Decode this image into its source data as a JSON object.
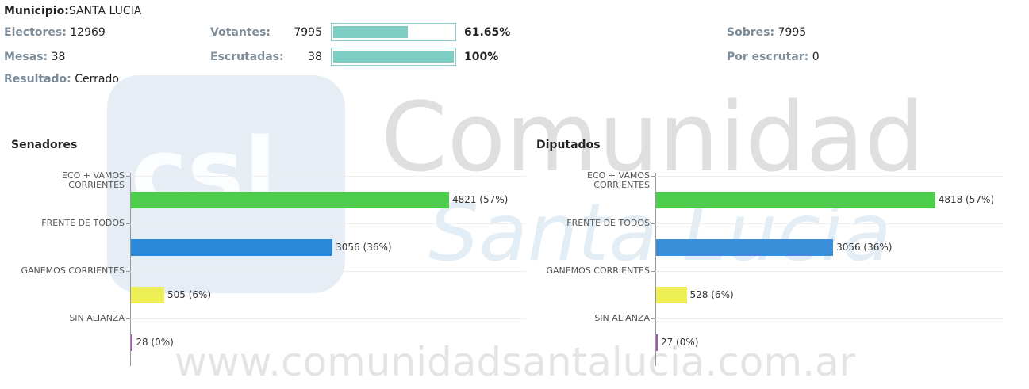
{
  "header": {
    "municipio_label": "Municipio:",
    "municipio": "SANTA LUCIA",
    "electores_label": "Electores:",
    "electores": 12969,
    "mesas_label": "Mesas:",
    "mesas": 38,
    "resultado_label": "Resultado:",
    "resultado": "Cerrado",
    "votantes_label": "Votantes:",
    "votantes": 7995,
    "votantes_pct": {
      "value": 61.65,
      "label": "61.65%"
    },
    "escrutadas_label": "Escrutadas:",
    "escrutadas": 38,
    "escrutadas_pct": {
      "value": 100,
      "label": "100%"
    },
    "sobres_label": "Sobres:",
    "sobres": 7995,
    "por_escrutar_label": "Por escrutar:",
    "por_escrutar": 0
  },
  "watermark": {
    "logo": "csl",
    "name": "Comunidad",
    "subname": "Santa Lucía",
    "url": "www.comunidadsantalucia.com.ar"
  },
  "chart_data": [
    {
      "type": "bar",
      "orientation": "horizontal",
      "title": "Senadores",
      "categories": [
        "ECO + VAMOS CORRIENTES",
        "FRENTE DE TODOS",
        "GANEMOS CORRIENTES",
        "SIN ALIANZA"
      ],
      "values": [
        4821,
        3056,
        505,
        28
      ],
      "value_labels": [
        "4821 (57%)",
        "3056 (36%)",
        "505 (6%)",
        "28 (0%)"
      ],
      "colors": [
        "#4ccd4c",
        "#2a88d8",
        "#eeee55",
        "#9b59b6"
      ],
      "xlim": [
        0,
        6000
      ]
    },
    {
      "type": "bar",
      "orientation": "horizontal",
      "title": "Diputados",
      "categories": [
        "ECO + VAMOS CORRIENTES",
        "FRENTE DE TODOS",
        "GANEMOS CORRIENTES",
        "SIN ALIANZA"
      ],
      "values": [
        4818,
        3056,
        528,
        27
      ],
      "value_labels": [
        "4818 (57%)",
        "3056 (36%)",
        "528 (6%)",
        "27 (0%)"
      ],
      "colors": [
        "#4ccd4c",
        "#3a8fd8",
        "#eeee55",
        "#9b59b6"
      ],
      "xlim": [
        0,
        6000
      ]
    }
  ]
}
